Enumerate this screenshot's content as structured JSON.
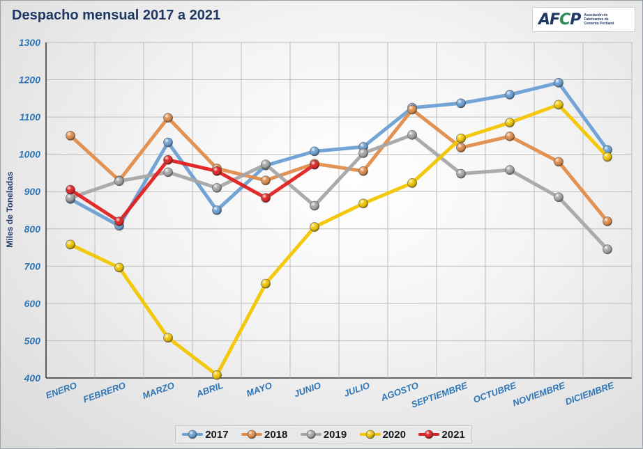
{
  "title": "Despacho mensual 2017 a 2021",
  "logo": {
    "wordmark_left": "AF",
    "wordmark_c": "C",
    "wordmark_right": "P",
    "subtitle": "Asociación de Fabricantes de Cemento Portland"
  },
  "chart_data": {
    "type": "line",
    "ylabel": "Miles de Toneladas",
    "xlabel": "",
    "ylim": [
      400,
      1300
    ],
    "ytick_step": 100,
    "yticks": [
      "400",
      "500",
      "600",
      "700",
      "800",
      "900",
      "1000",
      "1100",
      "1200",
      "1300"
    ],
    "grid": true,
    "legend_position": "bottom",
    "categories": [
      "ENERO",
      "FEBRERO",
      "MARZO",
      "ABRIL",
      "MAYO",
      "JUNIO",
      "JULIO",
      "AGOSTO",
      "SEPTIEMBRE",
      "OCTUBRE",
      "NOVIEMBRE",
      "DICIEMBRE"
    ],
    "series": [
      {
        "name": "2017",
        "color": "#6a9fd4",
        "values": [
          880,
          808,
          1032,
          850,
          970,
          1008,
          1020,
          1125,
          1137,
          1160,
          1192,
          1012
        ]
      },
      {
        "name": "2018",
        "color": "#e08c4a",
        "values": [
          1050,
          930,
          1098,
          962,
          930,
          975,
          955,
          1120,
          1018,
          1048,
          980,
          820
        ]
      },
      {
        "name": "2019",
        "color": "#a6a6a6",
        "values": [
          883,
          928,
          952,
          910,
          973,
          862,
          1003,
          1052,
          948,
          958,
          885,
          745
        ]
      },
      {
        "name": "2020",
        "color": "#f2c500",
        "values": [
          758,
          696,
          508,
          408,
          653,
          805,
          868,
          923,
          1043,
          1085,
          1133,
          993
        ]
      },
      {
        "name": "2021",
        "color": "#e02020",
        "values": [
          905,
          820,
          985,
          955,
          883,
          972,
          null,
          null,
          null,
          null,
          null,
          null
        ]
      }
    ]
  }
}
